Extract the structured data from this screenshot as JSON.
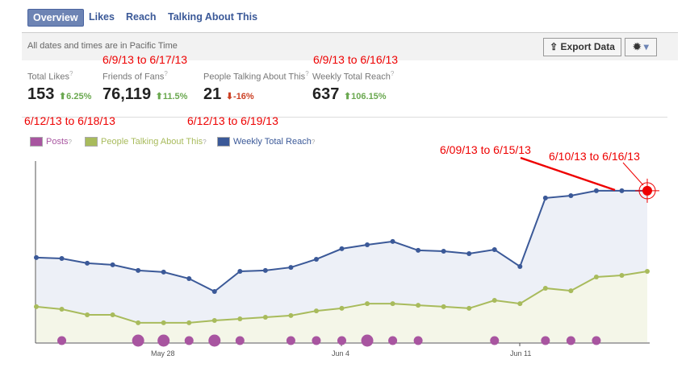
{
  "tabs": [
    "Overview",
    "Likes",
    "Reach",
    "Talking About This"
  ],
  "notice": "All dates and times are in Pacific Time",
  "export_label": "Export Data",
  "metrics": [
    {
      "label": "Total Likes",
      "value": "153",
      "change": "6.25%",
      "dir": "up"
    },
    {
      "label": "Friends of Fans",
      "value": "76,119",
      "change": "11.5%",
      "dir": "up"
    },
    {
      "label": "People Talking About This",
      "value": "21",
      "change": "-16%",
      "dir": "down"
    },
    {
      "label": "Weekly Total Reach",
      "value": "637",
      "change": "106.15%",
      "dir": "up"
    }
  ],
  "annotations": [
    "6/9/13 to 6/17/13",
    "6/9/13 to 6/16/13",
    "6/12/13 to 6/18/13",
    "6/12/13 to 6/19/13",
    "6/09/13 to 6/15/13",
    "6/10/13 to 6/16/13"
  ],
  "legend": [
    "Posts",
    "People Talking About This",
    "Weekly Total Reach"
  ],
  "chart_data": {
    "type": "line",
    "x_tick_labels": [
      "May 28",
      "Jun 4",
      "Jun 11"
    ],
    "x": [
      "May 23",
      "May 24",
      "May 25",
      "May 26",
      "May 27",
      "May 28",
      "May 29",
      "May 30",
      "May 31",
      "Jun 1",
      "Jun 2",
      "Jun 3",
      "Jun 4",
      "Jun 5",
      "Jun 6",
      "Jun 7",
      "Jun 8",
      "Jun 9",
      "Jun 10",
      "Jun 11",
      "Jun 12",
      "Jun 13",
      "Jun 14",
      "Jun 15",
      "Jun 16"
    ],
    "y_scale": "relative 0-100 (no axis labels shown)",
    "series": [
      {
        "name": "Weekly Total Reach",
        "color": "#3b5998",
        "values": [
          46.7,
          46.2,
          43.6,
          42.7,
          39.6,
          38.7,
          35.1,
          28,
          39.1,
          39.6,
          41.3,
          45.8,
          51.6,
          53.8,
          55.6,
          50.7,
          50.2,
          48.9,
          51.1,
          41.8,
          79.6,
          80.9,
          83.6,
          83.6,
          83.6
        ]
      },
      {
        "name": "People Talking About This",
        "color": "#a8bb5c",
        "values": [
          19.6,
          18.2,
          15.1,
          15.1,
          10.7,
          10.7,
          10.7,
          12,
          12.9,
          13.8,
          14.7,
          17.3,
          18.7,
          21.3,
          21.3,
          20.4,
          19.6,
          18.7,
          23.1,
          21.3,
          29.8,
          28.4,
          36,
          36.9,
          39.1
        ]
      },
      {
        "name": "Posts",
        "color": "#a855a0",
        "values": [
          0,
          1,
          0,
          0,
          2,
          2,
          1,
          2,
          1,
          0,
          1,
          1,
          1,
          2,
          1,
          1,
          0,
          0,
          1,
          0,
          1,
          1,
          1,
          0,
          0
        ]
      }
    ]
  }
}
